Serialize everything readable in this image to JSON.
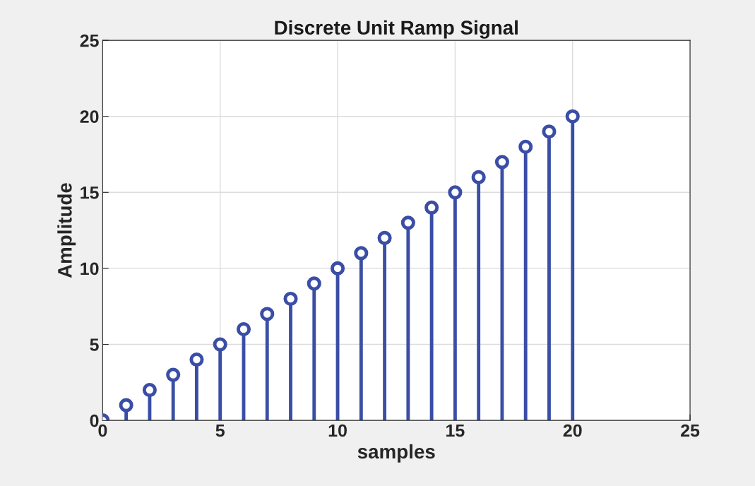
{
  "chart_data": {
    "type": "lollipop",
    "title": "Discrete Unit Ramp Signal",
    "xlabel": "samples",
    "ylabel": "Amplitude",
    "x": [
      0,
      1,
      2,
      3,
      4,
      5,
      6,
      7,
      8,
      9,
      10,
      11,
      12,
      13,
      14,
      15,
      16,
      17,
      18,
      19,
      20
    ],
    "values": [
      0,
      1,
      2,
      3,
      4,
      5,
      6,
      7,
      8,
      9,
      10,
      11,
      12,
      13,
      14,
      15,
      16,
      17,
      18,
      19,
      20
    ],
    "color": "#3a4ea6",
    "marker": "circle",
    "grid": true,
    "xlim": [
      0,
      25
    ],
    "xticks": [
      0,
      5,
      10,
      15,
      20,
      25
    ],
    "ylim": [
      0,
      25
    ],
    "yticks": [
      0,
      5,
      10,
      15,
      20,
      25
    ]
  }
}
